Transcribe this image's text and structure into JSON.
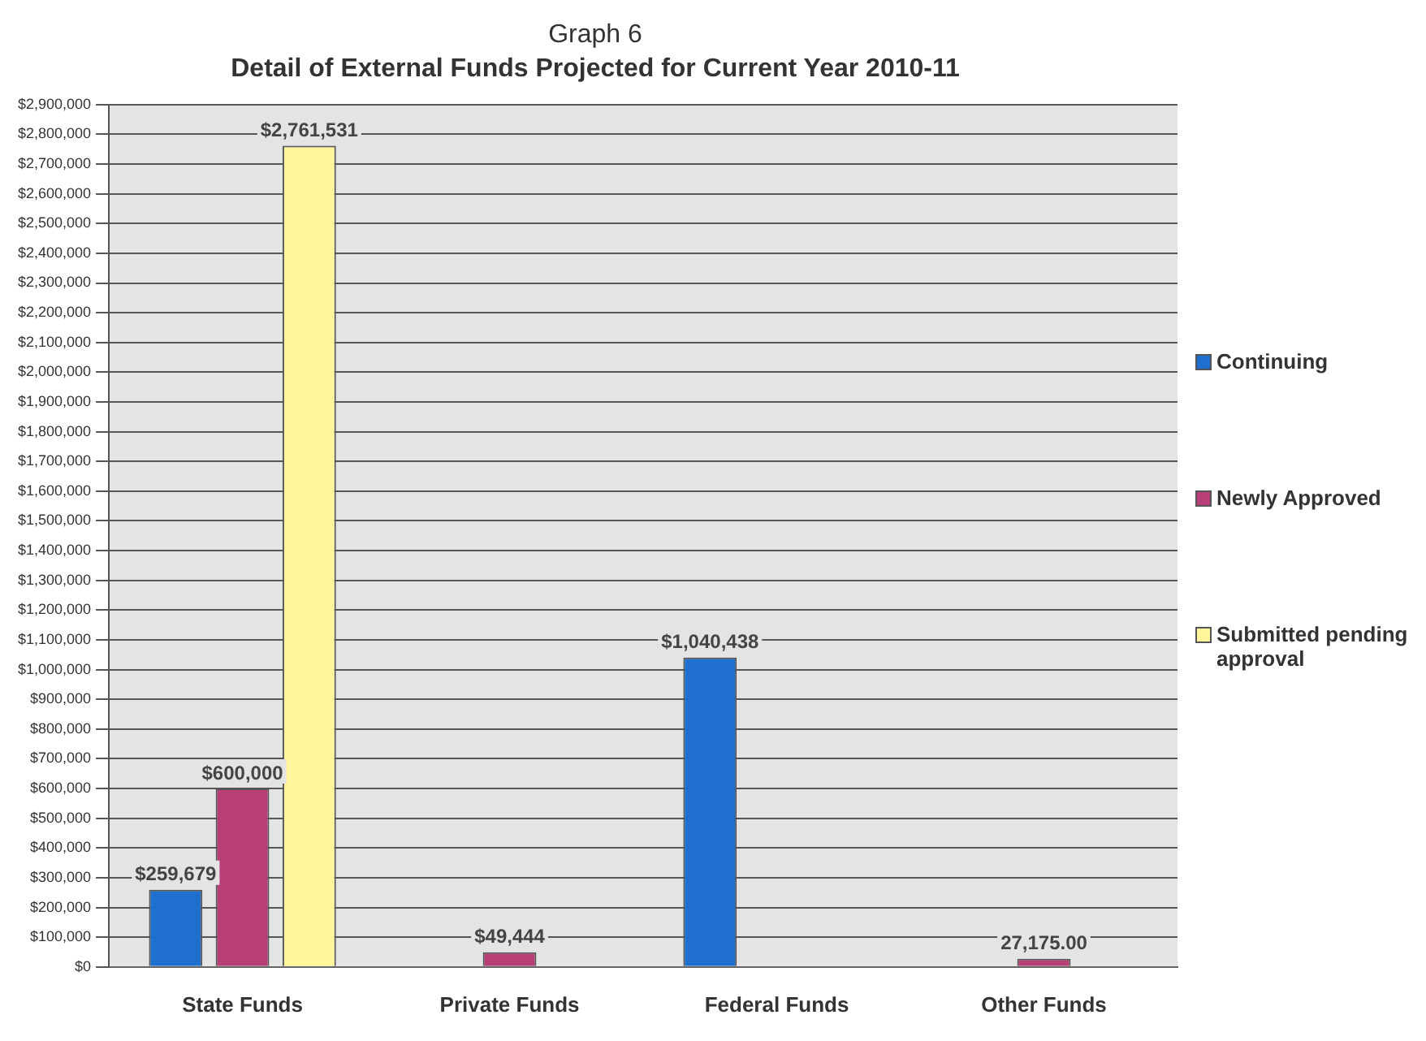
{
  "chart_data": {
    "type": "bar",
    "title": "Graph 6",
    "subtitle": "Detail of External Funds Projected for Current Year 2010-11",
    "categories": [
      "State Funds",
      "Private Funds",
      "Federal Funds",
      "Other Funds"
    ],
    "series": [
      {
        "name": "Continuing",
        "color": "#1f6fcf",
        "values": [
          259679,
          null,
          1040438,
          null
        ],
        "value_labels": [
          "$259,679",
          null,
          "$1,040,438",
          null
        ]
      },
      {
        "name": "Newly Approved",
        "color": "#b83e78",
        "values": [
          600000,
          49444,
          null,
          27175
        ],
        "value_labels": [
          "$600,000",
          "$49,444",
          null,
          "27,175.00"
        ]
      },
      {
        "name": "Submitted pending approval",
        "color": "#fff59a",
        "values": [
          2761531,
          null,
          null,
          null
        ],
        "value_labels": [
          "$2,761,531",
          null,
          null,
          null
        ]
      }
    ],
    "ylim": [
      0,
      2900000
    ],
    "yticks": [
      {
        "value": 0,
        "label": "$0"
      },
      {
        "value": 100000,
        "label": "$100,000"
      },
      {
        "value": 200000,
        "label": "$200,000"
      },
      {
        "value": 300000,
        "label": "$300,000"
      },
      {
        "value": 400000,
        "label": "$400,000"
      },
      {
        "value": 500000,
        "label": "$500,000"
      },
      {
        "value": 600000,
        "label": "$600,000"
      },
      {
        "value": 700000,
        "label": "$700,000"
      },
      {
        "value": 800000,
        "label": "$800,000"
      },
      {
        "value": 900000,
        "label": "$900,000"
      },
      {
        "value": 1000000,
        "label": "$1,000,000"
      },
      {
        "value": 1100000,
        "label": "$1,100,000"
      },
      {
        "value": 1200000,
        "label": "$1,200,000"
      },
      {
        "value": 1300000,
        "label": "$1,300,000"
      },
      {
        "value": 1400000,
        "label": "$1,400,000"
      },
      {
        "value": 1500000,
        "label": "$1,500,000"
      },
      {
        "value": 1600000,
        "label": "$1,600,000"
      },
      {
        "value": 1700000,
        "label": "$1,700,000"
      },
      {
        "value": 1800000,
        "label": "$1,800,000"
      },
      {
        "value": 1900000,
        "label": "$1,900,000"
      },
      {
        "value": 2000000,
        "label": "$2,000,000"
      },
      {
        "value": 2100000,
        "label": "$2,100,000"
      },
      {
        "value": 2200000,
        "label": "$2,200,000"
      },
      {
        "value": 2300000,
        "label": "$2,300,000"
      },
      {
        "value": 2400000,
        "label": "$2,400,000"
      },
      {
        "value": 2500000,
        "label": "$2,500,000"
      },
      {
        "value": 2600000,
        "label": "$2,600,000"
      },
      {
        "value": 2700000,
        "label": "$2,700,000"
      },
      {
        "value": 2800000,
        "label": "$2,800,000"
      },
      {
        "value": 2900000,
        "label": "$2,900,000"
      }
    ],
    "grid": "y",
    "legend": "right"
  }
}
